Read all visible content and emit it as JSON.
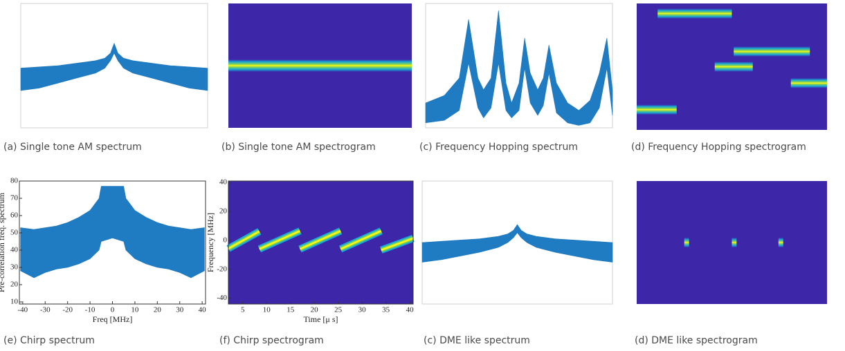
{
  "chart_data": [
    {
      "type": "spectrum",
      "caption": "(a) Single tone AM spectrum",
      "color": "#1f7bc2",
      "xlim": [
        -5,
        5
      ],
      "ylim": [
        -40,
        10
      ],
      "x": [
        -5,
        -4,
        -3,
        -2,
        -1,
        -0.5,
        -0.2,
        0,
        0.2,
        0.5,
        1,
        2,
        3,
        4,
        5
      ],
      "values": [
        -16,
        -15.5,
        -15,
        -14,
        -13,
        -12,
        -10,
        -6,
        -10,
        -12,
        -13,
        -14,
        -15,
        -15.5,
        -16
      ],
      "lower": [
        -25,
        -24,
        -22,
        -20,
        -18,
        -16,
        -13,
        -10,
        -13,
        -16,
        -18,
        -20,
        -22,
        -24,
        -25
      ]
    },
    {
      "type": "spectrogram",
      "caption": "(b) Single tone AM spectrogram",
      "color": "#3e26a8",
      "band_colors": [
        "#17a9d6",
        "#7ccf5f",
        "#f9fb0e"
      ],
      "band": 1,
      "xlim": [
        0,
        10
      ],
      "ylim": [
        -5,
        5
      ],
      "segments": [
        {
          "t": [
            0,
            10
          ],
          "f": 0
        }
      ]
    },
    {
      "type": "spectrum",
      "caption": "(c) Frequency Hopping spectrum",
      "color": "#1f7bc2",
      "xlim": [
        -5,
        5
      ],
      "ylim": [
        -40,
        10
      ],
      "x": [
        -5,
        -4,
        -3.2,
        -2.7,
        -2.2,
        -1.9,
        -1.5,
        -1.1,
        -0.7,
        -0.4,
        0,
        0.3,
        0.6,
        1,
        1.3,
        1.6,
        2,
        2.6,
        3.2,
        3.8,
        4.3,
        4.7,
        5
      ],
      "values": [
        -30,
        -27,
        -20,
        3.6,
        -20,
        -24.7,
        -20,
        7.2,
        -22,
        -30,
        -22,
        -3.9,
        -18,
        -24.7,
        -20,
        -6.7,
        -22,
        -30,
        -33,
        -29,
        -18,
        -3.9,
        -25
      ],
      "lower": [
        -38,
        -37,
        -33,
        -14,
        -32,
        -36,
        -32,
        -14,
        -33,
        -36,
        -33,
        -16,
        -30,
        -35,
        -31,
        -18,
        -34,
        -38,
        -39,
        -38,
        -32,
        -16,
        -35
      ]
    },
    {
      "type": "spectrogram",
      "caption": "(d) Frequency Hopping spectrogram",
      "color": "#3e26a8",
      "band_colors": [
        "#17a9d6",
        "#7ccf5f",
        "#f9fb0e"
      ],
      "band": 0.8,
      "xlim": [
        0,
        10
      ],
      "ylim": [
        -5,
        5
      ],
      "segments": [
        {
          "t": [
            1.1,
            5.0
          ],
          "f": 4.2
        },
        {
          "t": [
            4.1,
            6.1
          ],
          "f": 0
        },
        {
          "t": [
            5.1,
            9.1
          ],
          "f": 1.2
        },
        {
          "t": [
            8.1,
            10
          ],
          "f": -1.3
        },
        {
          "t": [
            0,
            2.1
          ],
          "f": -3.4
        }
      ]
    },
    {
      "type": "spectrum",
      "caption": "(e) Chirp spectrum",
      "color": "#1f7bc2",
      "xlabel": "Freq [MHz]",
      "ylabel": "Pre-correlation freq. spectrum",
      "xlim": [
        -41.5,
        41.5
      ],
      "ylim": [
        8.8,
        80
      ],
      "xticks": [
        -40,
        -30,
        -20,
        -10,
        0,
        10,
        20,
        30,
        40
      ],
      "yticks": [
        10,
        20,
        30,
        40,
        50,
        60,
        70,
        80
      ],
      "x": [
        -41,
        -35,
        -30,
        -25,
        -20,
        -15,
        -10,
        -6,
        -5,
        0,
        5,
        6,
        10,
        15,
        20,
        25,
        30,
        35,
        41
      ],
      "values": [
        53,
        52,
        53,
        54,
        56,
        59,
        63,
        70,
        77,
        77,
        77,
        70,
        63,
        59,
        56,
        54,
        53,
        52,
        53
      ],
      "lower": [
        28,
        24,
        27,
        29,
        30,
        32,
        35,
        40,
        45,
        47,
        45,
        40,
        35,
        32,
        30,
        29,
        27,
        24,
        28
      ]
    },
    {
      "type": "spectrogram",
      "caption": "(f) Chirp spectrogram",
      "color": "#3e26a8",
      "band_colors": [
        "#17a9d6",
        "#7ccf5f",
        "#f9fb0e"
      ],
      "band": 5,
      "xlabel": "Time [μ s]",
      "ylabel": "Frequency [MHz]",
      "xlim": [
        2,
        40.7
      ],
      "ylim": [
        -44,
        41
      ],
      "xticks": [
        5,
        10,
        15,
        20,
        25,
        30,
        35,
        40
      ],
      "yticks": [
        -40,
        -20,
        0,
        20,
        40
      ],
      "chirps": [
        {
          "t": [
            2,
            8.5
          ],
          "f": [
            -5.7,
            6.2
          ]
        },
        {
          "t": [
            8.5,
            17
          ],
          "f": [
            -6,
            6.5
          ]
        },
        {
          "t": [
            17,
            25.5
          ],
          "f": [
            -6,
            6.5
          ]
        },
        {
          "t": [
            25.5,
            34
          ],
          "f": [
            -6,
            6.5
          ]
        },
        {
          "t": [
            34,
            40.7
          ],
          "f": [
            -6.7,
            1.4
          ]
        }
      ]
    },
    {
      "type": "spectrum",
      "caption": "(c) DME like spectrum",
      "color": "#1f7bc2",
      "xlim": [
        -5,
        5
      ],
      "ylim": [
        -40,
        10
      ],
      "x": [
        -5,
        -4,
        -3,
        -2,
        -1,
        -0.5,
        -0.2,
        0,
        0.2,
        0.5,
        1,
        2,
        3,
        4,
        5
      ],
      "values": [
        -15,
        -14.5,
        -14,
        -13.5,
        -12.5,
        -11.5,
        -10,
        -7.7,
        -10,
        -11.5,
        -12.5,
        -13.5,
        -14,
        -14.5,
        -15
      ],
      "lower": [
        -23,
        -22,
        -20.5,
        -19,
        -17,
        -15,
        -13,
        -11,
        -13,
        -15,
        -17,
        -19,
        -20.5,
        -22,
        -23
      ]
    },
    {
      "type": "spectrogram",
      "caption": "(d) DME like spectrogram",
      "color": "#3e26a8",
      "band_colors": [
        "#17a9d6",
        "#7ccf5f",
        "#f9fb0e"
      ],
      "band": 0.8,
      "xlim": [
        0,
        10
      ],
      "ylim": [
        -5,
        5
      ],
      "segments": [
        {
          "t": [
            2.5,
            2.75
          ],
          "f": 0
        },
        {
          "t": [
            5.0,
            5.25
          ],
          "f": 0
        },
        {
          "t": [
            7.45,
            7.7
          ],
          "f": 0
        }
      ]
    }
  ]
}
